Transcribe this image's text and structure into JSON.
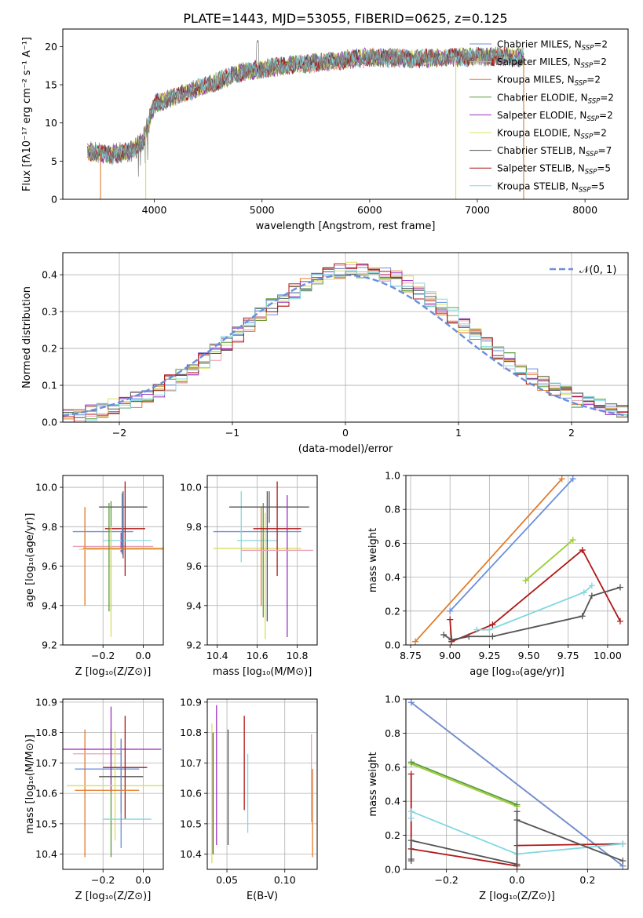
{
  "figure_title": "PLATE=1443, MJD=53055, FIBERID=0625, z=0.125",
  "colors": {
    "chabrier_miles": "#6a8fdc",
    "salpeter_miles": "#e8a0b8",
    "kroupa_miles": "#e07b2a",
    "chabrier_elodie": "#5a9a3a",
    "salpeter_elodie": "#9b30c0",
    "kroupa_elodie": "#d8e060",
    "chabrier_stelib": "#555555",
    "salpeter_stelib": "#b01818",
    "kroupa_stelib": "#80d8e0",
    "gaussian": "#6a8fdc",
    "mw_green": "#9acd32",
    "spectrum_gray": "#7f7f7f"
  },
  "chart_data": [
    {
      "id": "spectrum",
      "type": "line",
      "title": "PLATE=1443, MJD=53055, FIBERID=0625, z=0.125",
      "xlabel": "wavelength [Angstrom, rest frame]",
      "ylabel": "Flux [fλ10⁻¹⁷ erg cm⁻² s⁻¹ A⁻¹]",
      "xlim": [
        3150,
        8400
      ],
      "ylim": [
        0,
        22.3
      ],
      "xticks": [
        "4000",
        "5000",
        "6000",
        "7000",
        "8000"
      ],
      "yticks": [
        "0",
        "5",
        "10",
        "15",
        "20"
      ],
      "legend_position": "upper right",
      "series": [
        {
          "name": "Chabrier MILES, N_SSP=2",
          "label_main": "Chabrier MILES, N",
          "label_sub": "SSP",
          "label_tail": "=2",
          "color_key": "chabrier_miles"
        },
        {
          "name": "Salpeter MILES, N_SSP=2",
          "label_main": "Salpeter MILES, N",
          "label_sub": "SSP",
          "label_tail": "=2",
          "color_key": "salpeter_miles"
        },
        {
          "name": "Kroupa MILES, N_SSP=2",
          "label_main": "Kroupa MILES, N",
          "label_sub": "SSP",
          "label_tail": "=2",
          "color_key": "kroupa_miles"
        },
        {
          "name": "Chabrier ELODIE, N_SSP=2",
          "label_main": "Chabrier ELODIE, N",
          "label_sub": "SSP",
          "label_tail": "=2",
          "color_key": "chabrier_elodie"
        },
        {
          "name": "Salpeter ELODIE, N_SSP=2",
          "label_main": "Salpeter ELODIE, N",
          "label_sub": "SSP",
          "label_tail": "=2",
          "color_key": "salpeter_elodie"
        },
        {
          "name": "Kroupa ELODIE, N_SSP=2",
          "label_main": "Kroupa ELODIE, N",
          "label_sub": "SSP",
          "label_tail": "=2",
          "color_key": "kroupa_elodie"
        },
        {
          "name": "Chabrier STELIB, N_SSP=7",
          "label_main": "Chabrier STELIB, N",
          "label_sub": "SSP",
          "label_tail": "=7",
          "color_key": "chabrier_stelib"
        },
        {
          "name": "Salpeter STELIB, N_SSP=5",
          "label_main": "Salpeter STELIB, N",
          "label_sub": "SSP",
          "label_tail": "=5",
          "color_key": "salpeter_stelib"
        },
        {
          "name": "Kroupa STELIB, N_SSP=5",
          "label_main": "Kroupa STELIB, N",
          "label_sub": "SSP",
          "label_tail": "=5",
          "color_key": "kroupa_stelib"
        }
      ],
      "continuum_knots": [
        [
          3380,
          6.2
        ],
        [
          3600,
          5.8
        ],
        [
          3800,
          6.4
        ],
        [
          3900,
          7.8
        ],
        [
          4000,
          12.5
        ],
        [
          4200,
          13.5
        ],
        [
          4500,
          15.0
        ],
        [
          4800,
          16.6
        ],
        [
          5200,
          17.5
        ],
        [
          5600,
          18.0
        ],
        [
          6000,
          18.6
        ],
        [
          6400,
          18.4
        ],
        [
          6800,
          18.6
        ],
        [
          7200,
          18.7
        ],
        [
          7430,
          18.6
        ]
      ],
      "spectrum_range": [
        3380,
        7430
      ],
      "dropouts": [
        {
          "x": 3500,
          "color_key": "kroupa_miles"
        },
        {
          "x": 3920,
          "color_key": "kroupa_elodie"
        },
        {
          "x": 6800,
          "color_key": "kroupa_elodie"
        },
        {
          "x": 7430,
          "color_key": "kroupa_miles"
        }
      ]
    },
    {
      "id": "residuals",
      "type": "line",
      "xlabel": "(data-model)/error",
      "ylabel": "Normed distribution",
      "xlim": [
        -2.5,
        2.5
      ],
      "ylim": [
        0,
        0.46
      ],
      "xticks": [
        "−2",
        "−1",
        "0",
        "1",
        "2"
      ],
      "yticks": [
        "0.0",
        "0.1",
        "0.2",
        "0.3",
        "0.4"
      ],
      "grid": true,
      "legend_position": "upper right",
      "gaussian_label": "𝒩(0, 1)",
      "bin_width": 0.1,
      "sigma_profile": 1.0
    },
    {
      "id": "age_vs_Z",
      "type": "scatter",
      "xlabel": "Z [log₁₀(Z/Z⊙)]",
      "ylabel": "age  [log₁₀(age/yr)]",
      "xlim": [
        -0.4,
        0.1
      ],
      "ylim": [
        9.2,
        10.06
      ],
      "xticks": [
        "−0.2",
        "0.0"
      ],
      "yticks": [
        "9.2",
        "9.4",
        "9.6",
        "9.8",
        "10.0"
      ],
      "grid": true,
      "points": [
        {
          "color_key": "chabrier_miles",
          "x": -0.2,
          "xerr": 0.15,
          "y": 9.775,
          "yerr": 0.0
        },
        {
          "color_key": "salpeter_miles",
          "x": -0.15,
          "xerr": 0.2,
          "y": 9.7,
          "yerr": 0.0
        },
        {
          "color_key": "kroupa_miles",
          "x": -0.29,
          "xerr": 0.0,
          "y": 9.65,
          "yerr": 0.25
        },
        {
          "color_key": "chabrier_elodie",
          "x": -0.16,
          "xerr": 0.0,
          "y": 9.65,
          "yerr": 0.28
        },
        {
          "color_key": "salpeter_elodie",
          "x": -0.11,
          "xerr": 0.0,
          "y": 9.72,
          "yerr": 0.05
        },
        {
          "color_key": "kroupa_elodie",
          "x": -0.1,
          "xerr": 0.22,
          "y": 9.685,
          "yerr": 0.0
        },
        {
          "color_key": "chabrier_stelib",
          "x": -0.1,
          "xerr": 0.12,
          "y": 9.9,
          "yerr": 0.0
        },
        {
          "color_key": "salpeter_stelib",
          "x": -0.09,
          "xerr": 0.1,
          "y": 9.79,
          "yerr": 0.24
        },
        {
          "color_key": "kroupa_stelib",
          "x": -0.08,
          "xerr": 0.12,
          "y": 9.73,
          "yerr": 0.0
        }
      ],
      "extra_segments": [
        {
          "color_key": "kroupa_elodie",
          "x": -0.16,
          "y0": 9.24,
          "y1": 9.8
        },
        {
          "color_key": "chabrier_elodie",
          "x": -0.17,
          "y0": 9.37,
          "y1": 9.92
        },
        {
          "color_key": "chabrier_stelib",
          "x": -0.1,
          "y0": 9.64,
          "y1": 9.98
        },
        {
          "color_key": "chabrier_miles",
          "x": -0.105,
          "y0": 9.66,
          "y1": 9.97
        },
        {
          "color_key": "kroupa_miles",
          "x": -0.1,
          "xerr": 0.2,
          "y": 9.69
        }
      ]
    },
    {
      "id": "age_vs_mass",
      "type": "scatter",
      "xlabel": "mass [log₁₀(M/M⊙)]",
      "xlim": [
        10.35,
        10.9
      ],
      "ylim": [
        9.2,
        10.06
      ],
      "xticks": [
        "10.4",
        "10.6",
        "10.8"
      ],
      "yticks": [
        "9.2",
        "9.4",
        "9.6",
        "9.8",
        "10.0"
      ],
      "grid": true,
      "points": [
        {
          "color_key": "chabrier_miles",
          "x": 10.6,
          "xerr": 0.22,
          "y": 9.775,
          "yerr": 0.0
        },
        {
          "color_key": "kroupa_elodie",
          "x": 10.6,
          "xerr": 0.22,
          "y": 9.69,
          "yerr": 0.0
        },
        {
          "color_key": "kroupa_stelib",
          "x": 10.52,
          "xerr": 0.0,
          "y": 9.8,
          "yerr": 0.18
        },
        {
          "color_key": "kroupa_stelib",
          "x": 10.6,
          "xerr": 0.1,
          "y": 9.73,
          "yerr": 0.0
        },
        {
          "color_key": "kroupa_miles",
          "x": 10.62,
          "xerr": 0.0,
          "y": 9.65,
          "yerr": 0.25
        },
        {
          "color_key": "chabrier_elodie",
          "x": 10.63,
          "xerr": 0.0,
          "y": 9.63,
          "yerr": 0.29
        },
        {
          "color_key": "kroupa_elodie",
          "x": 10.64,
          "xerr": 0.0,
          "y": 9.55,
          "yerr": 0.32
        },
        {
          "color_key": "chabrier_stelib",
          "x": 10.66,
          "xerr": 0.2,
          "y": 9.9,
          "yerr": 0.08
        },
        {
          "color_key": "chabrier_stelib",
          "x": 10.65,
          "xerr": 0.0,
          "y": 9.65,
          "yerr": 0.33
        },
        {
          "color_key": "salpeter_stelib",
          "x": 10.7,
          "xerr": 0.12,
          "y": 9.79,
          "yerr": 0.24
        },
        {
          "color_key": "salpeter_elodie",
          "x": 10.75,
          "xerr": 0.0,
          "y": 9.6,
          "yerr": 0.36
        },
        {
          "color_key": "salpeter_miles",
          "x": 10.7,
          "xerr": 0.18,
          "y": 9.68,
          "yerr": 0.0
        }
      ]
    },
    {
      "id": "mw_vs_age",
      "type": "line",
      "xlabel": "age  [log₁₀(age/yr)]",
      "ylabel": "mass weight",
      "xlim": [
        8.72,
        10.13
      ],
      "ylim": [
        0,
        1
      ],
      "xticks": [
        "8.75",
        "9.00",
        "9.25",
        "9.50",
        "9.75",
        "10.00"
      ],
      "yticks": [
        "0.0",
        "0.2",
        "0.4",
        "0.6",
        "0.8",
        "1.0"
      ],
      "grid": true,
      "series": [
        {
          "color_key": "kroupa_miles",
          "x": [
            8.78,
            9.71
          ],
          "y": [
            0.02,
            0.98
          ]
        },
        {
          "color_key": "chabrier_miles",
          "x": [
            9.0,
            9.78
          ],
          "y": [
            0.2,
            0.98
          ]
        },
        {
          "color_key": "mw_green",
          "x": [
            9.48,
            9.78
          ],
          "y": [
            0.38,
            0.62
          ]
        },
        {
          "color_key": "salpeter_stelib",
          "x": [
            9.0,
            9.01,
            9.27,
            9.84,
            10.08
          ],
          "y": [
            0.15,
            0.02,
            0.12,
            0.56,
            0.14
          ]
        },
        {
          "color_key": "kroupa_stelib",
          "x": [
            9.17,
            9.25,
            9.85,
            9.9
          ],
          "y": [
            0.09,
            0.09,
            0.31,
            0.35
          ]
        },
        {
          "color_key": "chabrier_stelib",
          "x": [
            8.96,
            9.01,
            9.12,
            9.27,
            9.84,
            9.9,
            10.08
          ],
          "y": [
            0.06,
            0.03,
            0.05,
            0.05,
            0.17,
            0.29,
            0.34
          ]
        }
      ]
    },
    {
      "id": "mass_vs_Z",
      "type": "scatter",
      "xlabel": "Z [log₁₀(Z/Z⊙)]",
      "ylabel": "mass [log₁₀(M/M⊙)]",
      "xlim": [
        -0.4,
        0.1
      ],
      "ylim": [
        10.35,
        10.91
      ],
      "xticks": [
        "−0.2",
        "0.0"
      ],
      "yticks": [
        "10.4",
        "10.5",
        "10.6",
        "10.7",
        "10.8",
        "10.9"
      ],
      "grid": true,
      "points": [
        {
          "color_key": "kroupa_miles",
          "x": -0.29,
          "xerr": 0.0,
          "y": 10.6,
          "yerr": 0.21
        },
        {
          "color_key": "salpeter_miles",
          "x": -0.23,
          "xerr": 0.12,
          "y": 10.73,
          "yerr": 0.0
        },
        {
          "color_key": "chabrier_miles",
          "x": -0.18,
          "xerr": 0.16,
          "y": 10.68,
          "yerr": 0.0
        },
        {
          "color_key": "chabrier_elodie",
          "x": -0.16,
          "xerr": 0.0,
          "y": 10.6,
          "yerr": 0.21
        },
        {
          "color_key": "salpeter_elodie",
          "x": -0.16,
          "xerr": 0.25,
          "y": 10.745,
          "yerr": 0.14
        },
        {
          "color_key": "kroupa_elodie",
          "x": -0.14,
          "xerr": 0.24,
          "y": 10.625,
          "yerr": 0.18
        },
        {
          "color_key": "chabrier_stelib",
          "x": -0.11,
          "xerr": 0.11,
          "y": 10.655,
          "yerr": 0.12
        },
        {
          "color_key": "salpeter_stelib",
          "x": -0.09,
          "xerr": 0.11,
          "y": 10.685,
          "yerr": 0.17
        },
        {
          "color_key": "kroupa_stelib",
          "x": -0.08,
          "xerr": 0.12,
          "y": 10.515,
          "yerr": 0.0
        },
        {
          "color_key": "kroupa_miles",
          "x": -0.18,
          "xerr": 0.16,
          "y": 10.61,
          "yerr": 0.0
        },
        {
          "color_key": "chabrier_miles",
          "x": -0.11,
          "xerr": 0.0,
          "y": 10.6,
          "yerr": 0.18
        }
      ]
    },
    {
      "id": "mass_vs_ebv",
      "type": "scatter",
      "xlabel": "E(B-V)",
      "xlim": [
        0.033,
        0.128
      ],
      "ylim": [
        10.35,
        10.91
      ],
      "xticks": [
        "0.05",
        "0.10"
      ],
      "yticks": [
        "10.4",
        "10.5",
        "10.6",
        "10.7",
        "10.8",
        "10.9"
      ],
      "grid": true,
      "points": [
        {
          "color_key": "kroupa_elodie",
          "x": 0.037,
          "y": 10.6,
          "yerr": 0.23
        },
        {
          "color_key": "chabrier_stelib",
          "x": 0.038,
          "y": 10.6,
          "yerr": 0.2
        },
        {
          "color_key": "salpeter_elodie",
          "x": 0.041,
          "y": 10.66,
          "yerr": 0.23
        },
        {
          "color_key": "chabrier_stelib",
          "x": 0.051,
          "y": 10.62,
          "yerr": 0.19
        },
        {
          "color_key": "salpeter_stelib",
          "x": 0.065,
          "y": 10.7,
          "yerr": 0.155
        },
        {
          "color_key": "kroupa_stelib",
          "x": 0.068,
          "y": 10.6,
          "yerr": 0.13
        },
        {
          "color_key": "kroupa_miles",
          "x": 0.124,
          "y": 10.535,
          "yerr": 0.145
        },
        {
          "color_key": "salpeter_miles",
          "x": 0.123,
          "y": 10.65,
          "yerr": 0.145
        }
      ]
    },
    {
      "id": "mw_vs_Z",
      "type": "line",
      "xlabel": "Z [log₁₀(Z/Z⊙)]",
      "ylabel": "mass weight",
      "xlim": [
        -0.315,
        0.315
      ],
      "ylim": [
        0,
        1
      ],
      "xticks": [
        "−0.2",
        "0.0",
        "0.2"
      ],
      "yticks": [
        "0.0",
        "0.2",
        "0.4",
        "0.6",
        "0.8",
        "1.0"
      ],
      "grid": true,
      "series": [
        {
          "color_key": "kroupa_miles",
          "x": [
            -0.3,
            0.3
          ],
          "y": [
            0.98,
            0.02
          ]
        },
        {
          "color_key": "chabrier_miles",
          "x": [
            -0.3,
            0.3
          ],
          "y": [
            0.98,
            0.02
          ]
        },
        {
          "color_key": "mw_green",
          "x": [
            -0.3,
            0.0
          ],
          "y": [
            0.62,
            0.37
          ]
        },
        {
          "color_key": "chabrier_elodie",
          "x": [
            -0.3,
            0.0
          ],
          "y": [
            0.63,
            0.38
          ]
        },
        {
          "color_key": "salpeter_stelib",
          "x": [
            -0.3,
            -0.3,
            0.0,
            0.0,
            0.3
          ],
          "y": [
            0.56,
            0.12,
            0.02,
            0.14,
            0.15
          ]
        },
        {
          "color_key": "kroupa_stelib",
          "x": [
            -0.3,
            -0.3,
            0.0,
            0.3
          ],
          "y": [
            0.3,
            0.34,
            0.09,
            0.15
          ]
        },
        {
          "color_key": "chabrier_stelib",
          "x": [
            -0.3,
            -0.3,
            -0.3,
            0.0,
            0.0,
            0.0,
            0.3
          ],
          "y": [
            0.05,
            0.06,
            0.17,
            0.03,
            0.34,
            0.29,
            0.05
          ]
        }
      ]
    }
  ]
}
